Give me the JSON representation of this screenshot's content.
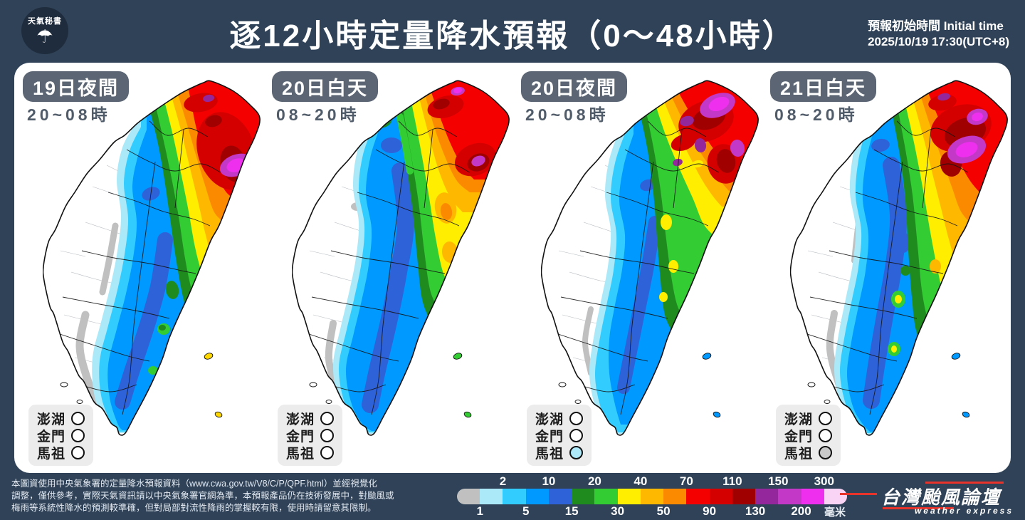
{
  "header": {
    "logo_text": "天氣秘書",
    "logo_umbrella_icon": "umbrella-rain-icon",
    "title": "逐12小時定量降水預報（0～48小時）",
    "initial_time_label": "預報初始時間 Initial time",
    "initial_time_value": "2025/10/19  17:30(UTC+8)"
  },
  "island_labels": [
    "澎湖",
    "金門",
    "馬祖"
  ],
  "panels": [
    {
      "badge": "19日夜間",
      "time": "20~08時",
      "island_status": [
        "#FFFFFF",
        "#FFFFFF",
        "#FFFFFF"
      ],
      "offshore_color": "#FFD700"
    },
    {
      "badge": "20日白天",
      "time": "08~20時",
      "island_status": [
        "#FFFFFF",
        "#FFFFFF",
        "#FFFFFF"
      ],
      "offshore_color": "#33CC33"
    },
    {
      "badge": "20日夜間",
      "time": "20~08時",
      "island_status": [
        "#FFFFFF",
        "#FFFFFF",
        "#AEE9F9"
      ],
      "offshore_color": "#0099FF"
    },
    {
      "badge": "21日白天",
      "time": "08~20時",
      "island_status": [
        "#FFFFFF",
        "#FFFFFF",
        "#C9C9C9"
      ],
      "offshore_color": "#0099FF"
    }
  ],
  "chart_data": {
    "type": "heatmap",
    "title": "逐12小時定量降水預報（0～48小時）",
    "legend_position": "bottom",
    "scale_boundaries_mm": [
      1,
      2,
      5,
      10,
      15,
      20,
      30,
      40,
      50,
      70,
      90,
      110,
      130,
      150,
      200,
      300
    ],
    "scale_top_labels": [
      "2",
      "10",
      "20",
      "40",
      "70",
      "110",
      "150",
      "300"
    ],
    "scale_bottom_labels": [
      "1",
      "5",
      "15",
      "30",
      "50",
      "90",
      "130",
      "200"
    ],
    "scale_unit": "毫米",
    "scale_colors": [
      "#C0C0C0",
      "#ABE9F9",
      "#33CCFF",
      "#0099FF",
      "#2E62D9",
      "#1F8B1F",
      "#33CC33",
      "#FFEE00",
      "#FFB800",
      "#FC8A00",
      "#F40000",
      "#D40000",
      "#A00000",
      "#93279B",
      "#C438C8",
      "#EE2FEE",
      "#F9D4F4"
    ],
    "series": [
      {
        "name": "19日夜間 20~08時",
        "summary": "北部及東北部70~300毫米以上（紅紫），東部30~70，中南部山區與東南部5~15（藍），西部平原小於1"
      },
      {
        "name": "20日白天 08~20時",
        "summary": "北部、東北部70~200（紅紫斑塊），東部30~50（黃橙），中央帶5~15（藍），西部小於1，離島綠色"
      },
      {
        "name": "20日夜間 20~08時",
        "summary": "北部極大值130~300（紫紅），東部15~30（綠），中部藍帶，南部1~5（淡藍），馬祖1~2"
      },
      {
        "name": "21日白天 08~20時",
        "summary": "北部70~300（大面積紫），東部40~70（橙黃），中南部5~15（藍），西部小於1，馬祖灰"
      }
    ]
  },
  "footer": {
    "disclaimer": {
      "line1": "本圖資使用中央氣象署的定量降水預報資料（www.cwa.gov.tw/V8/C/P/QPF.html）並經視覺化",
      "line2": "調整，僅供參考，實際天氣資訊請以中央氣象署官網為準，本預報產品仍在技術發展中，對颱風或",
      "line3": "梅雨等系統性降水的預測較準確，但對局部對流性降雨的掌握較有限，使用時請留意其限制。"
    },
    "legend_unit": "毫米",
    "logo": {
      "main": "台灣颱風論壇",
      "sub": "weather express"
    }
  }
}
